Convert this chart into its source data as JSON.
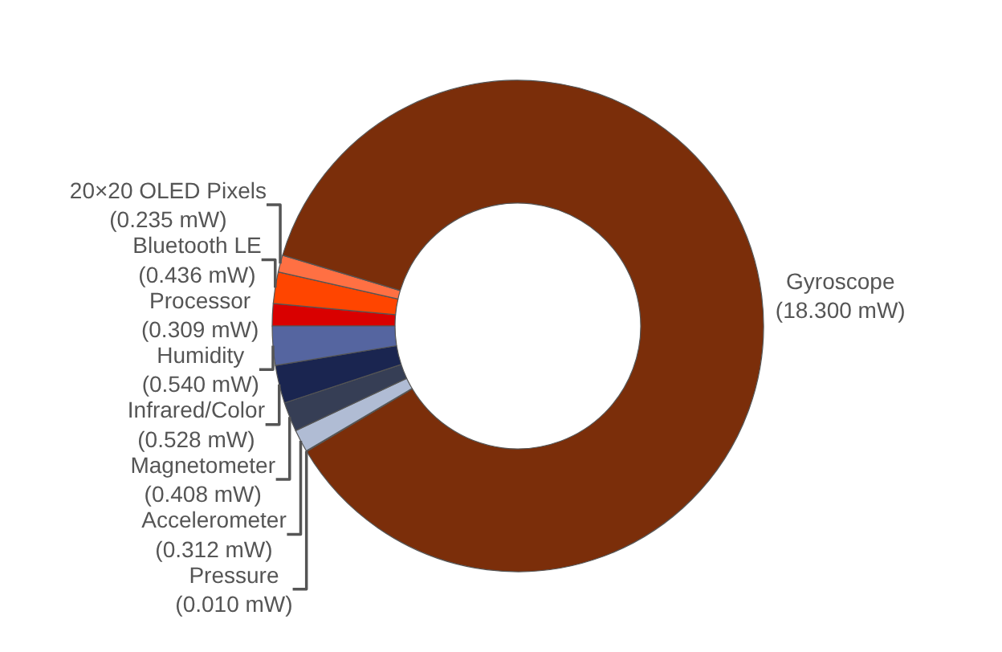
{
  "chart_data": {
    "type": "donut",
    "categories": [
      "Processor",
      "Bluetooth LE",
      "20×20 OLED Pixels",
      "Gyroscope",
      "Pressure",
      "Accelerometer",
      "Magnetometer",
      "Infrared/Color",
      "Humidity"
    ],
    "values": [
      0.309,
      0.436,
      0.235,
      18.3,
      0.01,
      0.312,
      0.408,
      0.528,
      0.54
    ],
    "value_labels": [
      "(0.309 mW)",
      "(0.436 mW)",
      "(0.235 mW)",
      "(18.300 mW)",
      "(0.010 mW)",
      "(0.312 mW)",
      "(0.408 mW)",
      "(0.528 mW)",
      "(0.540 mW)"
    ],
    "colors": [
      "#d90000",
      "#ff4500",
      "#ff7043",
      "#7b2e0a",
      "#ffe082",
      "#b0bcd4",
      "#363e55",
      "#1a2550",
      "#5565a0"
    ],
    "legend": false
  }
}
